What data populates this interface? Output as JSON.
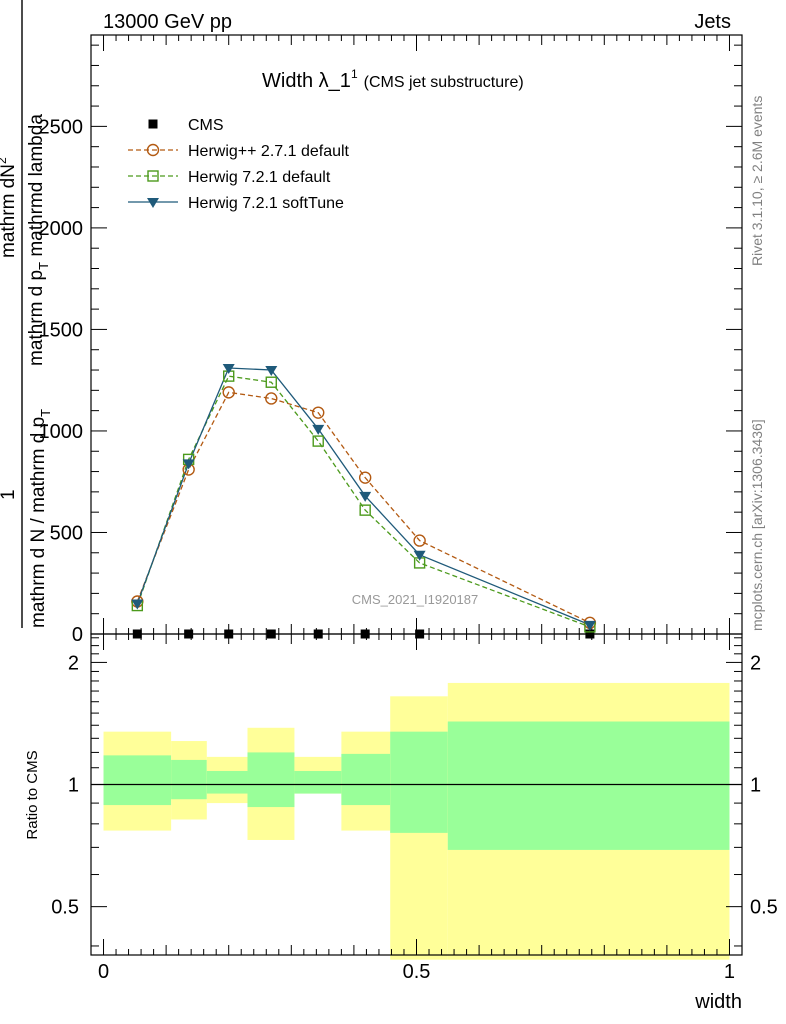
{
  "header": {
    "left": "13000 GeV pp",
    "right": "Jets"
  },
  "side_labels": {
    "rivet": "Rivet 3.1.10, ≥ 2.6M events",
    "mcplots": "mcplots.cern.ch [arXiv:1306.3436]"
  },
  "plot_title": {
    "main": "Width λ_1",
    "superscript": "1",
    "sub": "(CMS jet substructure)"
  },
  "watermark": "CMS_2021_I1920187",
  "y_label_main": {
    "numerator_prefix": "1",
    "numerator_frac": "mathrm dN",
    "fraction_top": "mathrm d N / mathrm d p",
    "fraction_top_sub": "T",
    "fraction_bottom": "mathrm d p",
    "fraction_bottom_sub": "T",
    "fraction_bottom_suffix": " mathrmd lambda",
    "fraction_extra": "2"
  },
  "y_label_ratio": "Ratio to CMS",
  "x_label": "width",
  "colors": {
    "herwigpp": "#b35a12",
    "herwig721": "#4c9a1c",
    "softtune": "#1f5a7a",
    "band_inner": "#99ff99",
    "band_outer": "#ffff99",
    "data": "#000000"
  },
  "chart_data": {
    "type": "line",
    "main": {
      "xlim": [
        -0.02,
        1.02
      ],
      "ylim": [
        0,
        2950
      ],
      "yticks": [
        0,
        500,
        1000,
        1500,
        2000,
        2500
      ],
      "ytick_labels": [
        "0",
        "500",
        "1000",
        "1500",
        "2000",
        "2500"
      ],
      "x": [
        0.054,
        0.136,
        0.2,
        0.268,
        0.343,
        0.418,
        0.505,
        0.777
      ],
      "cms": [
        0,
        0,
        0,
        0,
        0,
        0,
        0,
        0
      ],
      "series": [
        {
          "name": "CMS",
          "style": "data"
        },
        {
          "name": "Herwig++ 2.7.1 default",
          "style": "herwigpp",
          "values": [
            160,
            810,
            1190,
            1160,
            1090,
            770,
            460,
            55
          ]
        },
        {
          "name": "Herwig 7.2.1 default",
          "style": "herwig721",
          "values": [
            140,
            860,
            1270,
            1240,
            950,
            610,
            350,
            35
          ]
        },
        {
          "name": "Herwig 7.2.1 softTune",
          "style": "softtune",
          "values": [
            150,
            840,
            1310,
            1300,
            1010,
            680,
            390,
            45
          ]
        }
      ]
    },
    "ratio": {
      "xlim": [
        -0.02,
        1.02
      ],
      "ylim": [
        0.38,
        2.35
      ],
      "log": true,
      "yticks": [
        0.5,
        1,
        2
      ],
      "ytick_labels": [
        "0.5",
        "1",
        "2"
      ],
      "xticks": [
        0,
        0.5,
        1
      ],
      "xtick_labels": [
        "0",
        "0.5",
        "1"
      ],
      "bin_edges": [
        0.0,
        0.108,
        0.165,
        0.23,
        0.305,
        0.38,
        0.458,
        0.55,
        1.0
      ],
      "inner_band": [
        [
          0.89,
          1.18
        ],
        [
          0.92,
          1.15
        ],
        [
          0.95,
          1.08
        ],
        [
          0.88,
          1.2
        ],
        [
          0.95,
          1.08
        ],
        [
          0.89,
          1.19
        ],
        [
          0.76,
          1.35
        ],
        [
          0.69,
          1.43
        ]
      ],
      "outer_band": [
        [
          0.77,
          1.35
        ],
        [
          0.82,
          1.28
        ],
        [
          0.9,
          1.17
        ],
        [
          0.73,
          1.38
        ],
        [
          0.95,
          1.17
        ],
        [
          0.77,
          1.35
        ],
        [
          0.37,
          1.65
        ],
        [
          0.37,
          1.78
        ]
      ]
    }
  }
}
